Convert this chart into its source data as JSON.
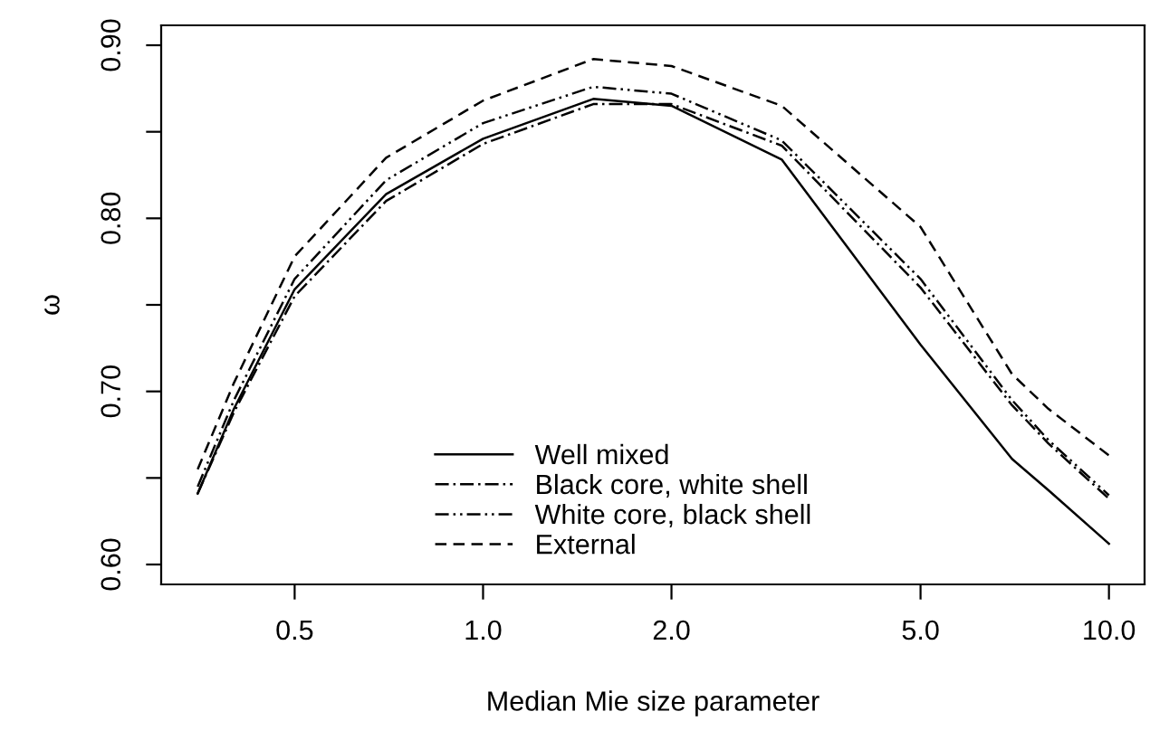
{
  "chart_data": {
    "type": "line",
    "xlabel": "Median Mie size parameter",
    "ylabel": "ω",
    "log": "x",
    "x": [
      0.35,
      0.4,
      0.5,
      0.7,
      1.0,
      1.5,
      2.0,
      3.0,
      5.0,
      7.0,
      8.0,
      10.0
    ],
    "series": [
      {
        "name": "Well mixed",
        "color": "#000000",
        "line_style": "solid",
        "values": [
          0.641,
          0.69,
          0.759,
          0.814,
          0.846,
          0.869,
          0.865,
          0.834,
          0.727,
          0.661,
          0.643,
          0.612
        ]
      },
      {
        "name": "Black core, white shell",
        "color": "#000000",
        "line_style": "dashdot",
        "values": [
          0.641,
          0.688,
          0.755,
          0.81,
          0.843,
          0.866,
          0.866,
          0.842,
          0.76,
          0.692,
          0.67,
          0.638
        ]
      },
      {
        "name": "White core, black shell",
        "color": "#000000",
        "line_style": "dashdotdot",
        "values": [
          0.645,
          0.695,
          0.765,
          0.822,
          0.855,
          0.876,
          0.872,
          0.845,
          0.765,
          0.695,
          0.672,
          0.64
        ]
      },
      {
        "name": "External",
        "color": "#000000",
        "line_style": "dashed",
        "values": [
          0.655,
          0.705,
          0.778,
          0.835,
          0.868,
          0.892,
          0.888,
          0.865,
          0.795,
          0.71,
          0.69,
          0.663
        ]
      }
    ],
    "xlim": [
      0.306,
      11.4
    ],
    "ylim": [
      0.5885,
      0.9115
    ],
    "xticks": [
      0.5,
      {
        "value": 1.0,
        "label": "1.0"
      },
      {
        "value": 2.0,
        "label": "2.0"
      },
      {
        "value": 5.0,
        "label": "5.0"
      },
      {
        "value": 10.0,
        "label": "10.0"
      }
    ],
    "yticks": [
      {
        "value": 0.6,
        "label": "0.60"
      },
      {
        "value": 0.65,
        "label": null
      },
      {
        "value": 0.7,
        "label": "0.70"
      },
      {
        "value": 0.75,
        "label": null
      },
      {
        "value": 0.8,
        "label": "0.80"
      },
      {
        "value": 0.85,
        "label": null
      },
      {
        "value": 0.9,
        "label": "0.90"
      }
    ],
    "grid": false,
    "legend": "bottom"
  }
}
